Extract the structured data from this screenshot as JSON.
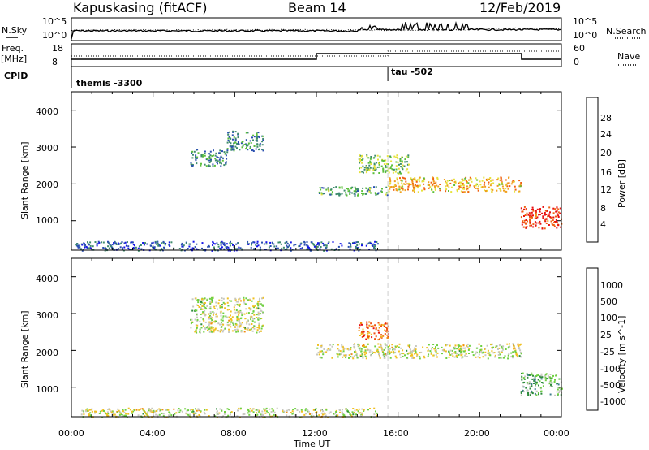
{
  "header": {
    "station": "Kapuskasing (fitACF)",
    "beam": "Beam 14",
    "date": "12/Feb/2019"
  },
  "top_panels": {
    "nsky_label": "N.Sky",
    "nsky_ticks": [
      "10^5",
      "10^0"
    ],
    "nsearch_label": "N.Search",
    "nsearch_ticks": [
      "10^5",
      "10^0"
    ],
    "freq_label": "Freq.",
    "freq_unit": "[MHz]",
    "freq_ticks": [
      "18",
      "8"
    ],
    "nave_label": "Nave",
    "nave_ticks": [
      "60",
      "0"
    ],
    "cpid_label": "CPID",
    "cpid_segments": [
      {
        "name": "themis -3300",
        "start_hour": 0
      },
      {
        "name": "tau -502",
        "start_hour": 15.5
      }
    ]
  },
  "chart_data": [
    {
      "type": "heatmap",
      "name": "power",
      "ylabel": "Slant Range [km]",
      "xlabel": "",
      "xlim": [
        0,
        24
      ],
      "ylim": [
        200,
        4500
      ],
      "yticks": [
        "1000",
        "2000",
        "3000",
        "4000"
      ],
      "colorbar_label": "Power [dB]",
      "colorbar_ticks": [
        "4",
        "8",
        "12",
        "16",
        "20",
        "24",
        "28"
      ],
      "colorbar_colors": [
        "#1515e8",
        "#2a4fb0",
        "#3e8c6c",
        "#5bbf3a",
        "#e6e23a",
        "#f0a020",
        "#f06010",
        "#e81010"
      ],
      "regions": [
        {
          "hours": [
            0.2,
            15.0
          ],
          "range_km": [
            200,
            450
          ],
          "level": 0.2
        },
        {
          "hours": [
            5.8,
            7.6
          ],
          "range_km": [
            2500,
            2950
          ],
          "level": 0.3
        },
        {
          "hours": [
            7.6,
            9.4
          ],
          "range_km": [
            2900,
            3450
          ],
          "level": 0.3
        },
        {
          "hours": [
            12.0,
            15.5
          ],
          "range_km": [
            1700,
            1950
          ],
          "level": 0.35
        },
        {
          "hours": [
            14.0,
            16.5
          ],
          "range_km": [
            2300,
            2800
          ],
          "level": 0.45
        },
        {
          "hours": [
            15.5,
            22.0
          ],
          "range_km": [
            1800,
            2200
          ],
          "level": 0.65
        },
        {
          "hours": [
            22.0,
            24.0
          ],
          "range_km": [
            800,
            1400
          ],
          "level": 0.9
        }
      ]
    },
    {
      "type": "heatmap",
      "name": "velocity",
      "ylabel": "Slant Range [km]",
      "xlabel": "Time UT",
      "xlim": [
        0,
        24
      ],
      "ylim": [
        200,
        4500
      ],
      "yticks": [
        "1000",
        "2000",
        "3000",
        "4000"
      ],
      "xticks": [
        "00:00",
        "04:00",
        "08:00",
        "12:00",
        "16:00",
        "20:00",
        "00:00"
      ],
      "colorbar_label": "Velocity [m s^-1]",
      "colorbar_ticks": [
        "1000",
        "500",
        "100",
        "25",
        "-25",
        "-100",
        "-500",
        "-1000"
      ],
      "colorbar_colors": [
        "#1a2fb4",
        "#3e7c8c",
        "#2e8c3c",
        "#6ed040",
        "#c8c8c0",
        "#f0c020",
        "#f08c10",
        "#f05010",
        "#e81010"
      ],
      "regions": [
        {
          "hours": [
            0.2,
            15.0
          ],
          "range_km": [
            200,
            450
          ],
          "level": 0.5
        },
        {
          "hours": [
            5.8,
            9.4
          ],
          "range_km": [
            2500,
            3450
          ],
          "level": 0.5
        },
        {
          "hours": [
            14.0,
            15.5
          ],
          "range_km": [
            2300,
            2800
          ],
          "level": 0.8
        },
        {
          "hours": [
            12.0,
            22.0
          ],
          "range_km": [
            1800,
            2200
          ],
          "level": 0.5
        },
        {
          "hours": [
            22.0,
            24.0
          ],
          "range_km": [
            800,
            1400
          ],
          "level": 0.35
        }
      ]
    }
  ]
}
